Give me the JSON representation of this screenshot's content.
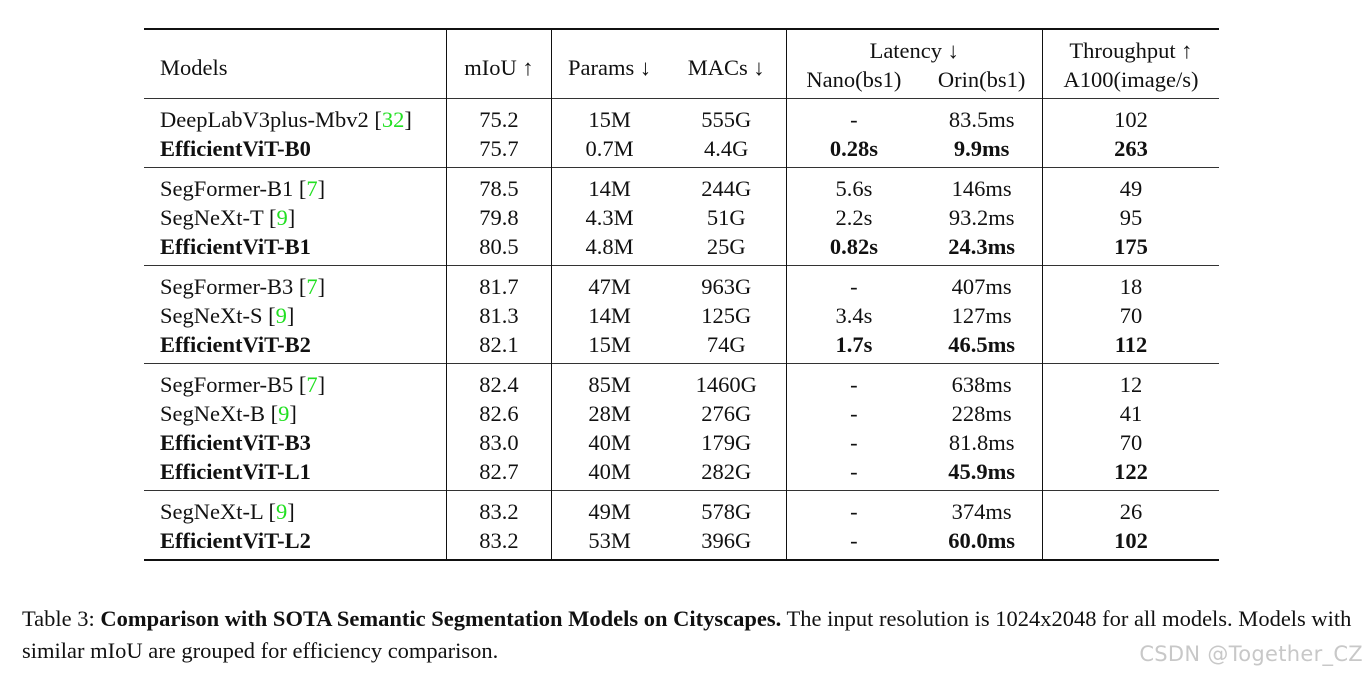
{
  "table": {
    "headers": {
      "models": "Models",
      "miou": "mIoU ↑",
      "params": "Params ↓",
      "macs": "MACs ↓",
      "latency": "Latency ↓",
      "nano": "Nano(bs1)",
      "orin": "Orin(bs1)",
      "throughput": "Throughput ↑",
      "a100": "A100(image/s)"
    },
    "groups": [
      {
        "rows": [
          {
            "model": "DeepLabV3plus-Mbv2 ",
            "cite": "32",
            "bold_model": false,
            "miou": "75.2",
            "params": "15M",
            "macs": "555G",
            "nano": "-",
            "orin": "83.5ms",
            "throughput": "102",
            "bold_metrics": false
          },
          {
            "model": "EfficientViT-B0",
            "cite": "",
            "bold_model": true,
            "miou": "75.7",
            "params": "0.7M",
            "macs": "4.4G",
            "nano": "0.28s",
            "orin": "9.9ms",
            "throughput": "263",
            "bold_metrics": true
          }
        ]
      },
      {
        "rows": [
          {
            "model": "SegFormer-B1 ",
            "cite": "7",
            "bold_model": false,
            "miou": "78.5",
            "params": "14M",
            "macs": "244G",
            "nano": "5.6s",
            "orin": "146ms",
            "throughput": "49",
            "bold_metrics": false
          },
          {
            "model": "SegNeXt-T ",
            "cite": "9",
            "bold_model": false,
            "miou": "79.8",
            "params": "4.3M",
            "macs": "51G",
            "nano": "2.2s",
            "orin": "93.2ms",
            "throughput": "95",
            "bold_metrics": false
          },
          {
            "model": "EfficientViT-B1",
            "cite": "",
            "bold_model": true,
            "miou": "80.5",
            "params": "4.8M",
            "macs": "25G",
            "nano": "0.82s",
            "orin": "24.3ms",
            "throughput": "175",
            "bold_metrics": true
          }
        ]
      },
      {
        "rows": [
          {
            "model": "SegFormer-B3 ",
            "cite": "7",
            "bold_model": false,
            "miou": "81.7",
            "params": "47M",
            "macs": "963G",
            "nano": "-",
            "orin": "407ms",
            "throughput": "18",
            "bold_metrics": false
          },
          {
            "model": "SegNeXt-S ",
            "cite": "9",
            "bold_model": false,
            "miou": "81.3",
            "params": "14M",
            "macs": "125G",
            "nano": "3.4s",
            "orin": "127ms",
            "throughput": "70",
            "bold_metrics": false
          },
          {
            "model": "EfficientViT-B2",
            "cite": "",
            "bold_model": true,
            "miou": "82.1",
            "params": "15M",
            "macs": "74G",
            "nano": "1.7s",
            "orin": "46.5ms",
            "throughput": "112",
            "bold_metrics": true
          }
        ]
      },
      {
        "rows": [
          {
            "model": "SegFormer-B5 ",
            "cite": "7",
            "bold_model": false,
            "miou": "82.4",
            "params": "85M",
            "macs": "1460G",
            "nano": "-",
            "orin": "638ms",
            "throughput": "12",
            "bold_metrics": false
          },
          {
            "model": "SegNeXt-B ",
            "cite": "9",
            "bold_model": false,
            "miou": "82.6",
            "params": "28M",
            "macs": "276G",
            "nano": "-",
            "orin": "228ms",
            "throughput": "41",
            "bold_metrics": false
          },
          {
            "model": "EfficientViT-B3",
            "cite": "",
            "bold_model": true,
            "miou": "83.0",
            "params": "40M",
            "macs": "179G",
            "nano": "-",
            "orin": "81.8ms",
            "throughput": "70",
            "bold_metrics": false
          },
          {
            "model": "EfficientViT-L1",
            "cite": "",
            "bold_model": true,
            "miou": "82.7",
            "params": "40M",
            "macs": "282G",
            "nano": "-",
            "orin": "45.9ms",
            "throughput": "122",
            "bold_metrics": true
          }
        ]
      },
      {
        "rows": [
          {
            "model": "SegNeXt-L ",
            "cite": "9",
            "bold_model": false,
            "miou": "83.2",
            "params": "49M",
            "macs": "578G",
            "nano": "-",
            "orin": "374ms",
            "throughput": "26",
            "bold_metrics": false
          },
          {
            "model": "EfficientViT-L2",
            "cite": "",
            "bold_model": true,
            "miou": "83.2",
            "params": "53M",
            "macs": "396G",
            "nano": "-",
            "orin": "60.0ms",
            "throughput": "102",
            "bold_metrics": true
          }
        ]
      }
    ]
  },
  "caption": {
    "label": "Table 3: ",
    "title": "Comparison with SOTA Semantic Segmentation Models on Cityscapes.",
    "body": " The input resolution is 1024x2048 for all models. Models with similar mIoU are grouped for efficiency comparison."
  },
  "watermark": "CSDN @Together_CZ",
  "colors": {
    "citation": "#22e022",
    "text": "#111111",
    "watermark": "#c8c8c8"
  }
}
